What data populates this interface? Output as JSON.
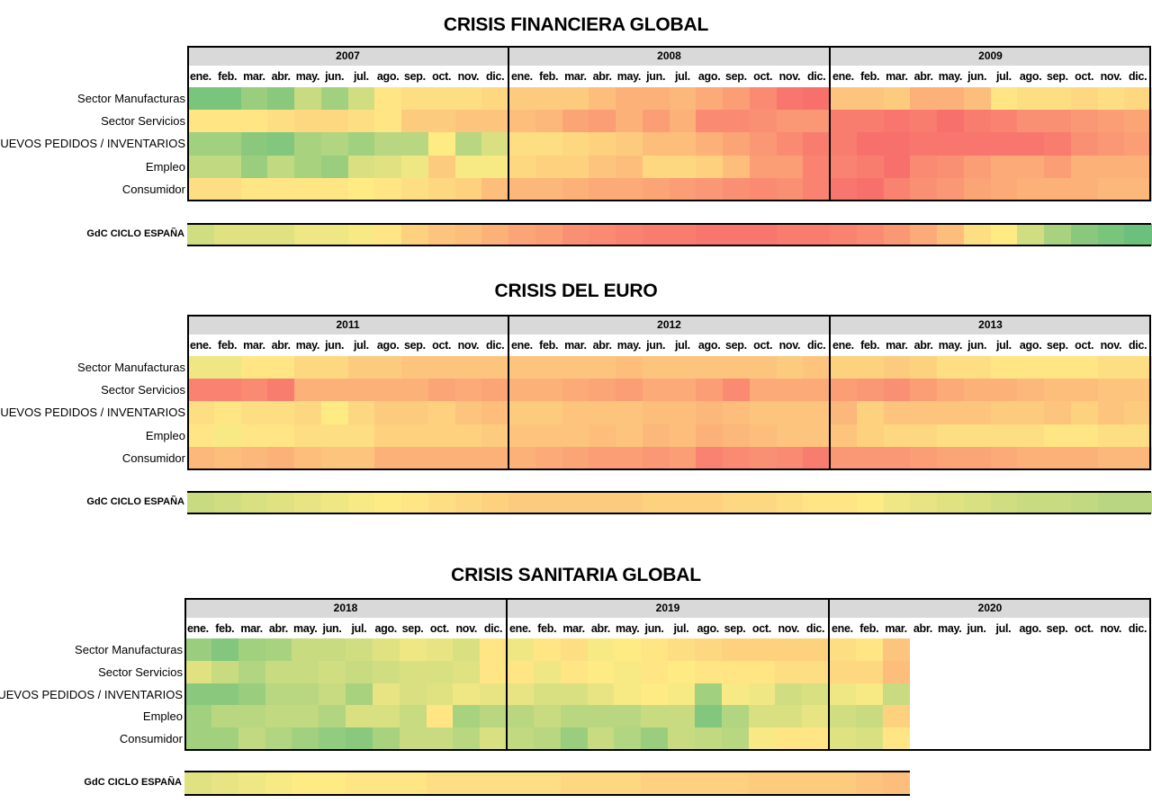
{
  "months": [
    "ene.",
    "feb.",
    "mar.",
    "abr.",
    "may.",
    "jun.",
    "jul.",
    "ago.",
    "sep.",
    "oct.",
    "nov.",
    "dic."
  ],
  "row_labels": [
    "Sector Manufacturas",
    "Sector Servicios",
    "NUEVOS PEDIDOS / INVENTARIOS",
    "Empleo",
    "Consumidor"
  ],
  "cycle_label": "GdC CICLO ESPAÑA",
  "palette": {
    "green": "#63be7b",
    "yellow": "#ffeb84",
    "red": "#f8696b"
  },
  "chart_data": [
    {
      "type": "heatmap",
      "title": "CRISIS FINANCIERA GLOBAL",
      "years": [
        "2007",
        "2008",
        "2009"
      ],
      "scale": "-1 = green (best), 0 = yellow, 1 = red (worst)",
      "rows": [
        [
          -0.85,
          -0.85,
          -0.65,
          -0.75,
          -0.35,
          -0.6,
          -0.3,
          0.05,
          0.1,
          0.1,
          0.1,
          0.15,
          0.25,
          0.25,
          0.25,
          0.35,
          0.45,
          0.45,
          0.4,
          0.5,
          0.6,
          0.75,
          0.9,
          0.95,
          0.3,
          0.3,
          0.25,
          0.45,
          0.45,
          0.35,
          0.05,
          0.1,
          0.1,
          0.15,
          0.1,
          0.15
        ],
        [
          0.05,
          0.05,
          0.05,
          0.1,
          0.15,
          0.15,
          0.1,
          0.05,
          0.25,
          0.25,
          0.3,
          0.3,
          0.35,
          0.4,
          0.55,
          0.6,
          0.45,
          0.6,
          0.45,
          0.75,
          0.75,
          0.7,
          0.65,
          0.65,
          0.85,
          0.85,
          0.9,
          0.85,
          0.95,
          0.85,
          0.8,
          0.7,
          0.7,
          0.65,
          0.6,
          0.55
        ],
        [
          -0.6,
          -0.6,
          -0.75,
          -0.8,
          -0.55,
          -0.5,
          -0.6,
          -0.45,
          -0.45,
          0.0,
          -0.45,
          -0.25,
          0.1,
          0.1,
          0.15,
          0.2,
          0.25,
          0.35,
          0.35,
          0.45,
          0.55,
          0.65,
          0.75,
          0.85,
          0.85,
          0.95,
          0.95,
          0.9,
          0.9,
          0.9,
          0.9,
          0.9,
          0.85,
          0.7,
          0.65,
          0.6
        ],
        [
          -0.4,
          -0.4,
          -0.65,
          -0.4,
          -0.55,
          -0.65,
          -0.25,
          -0.2,
          -0.1,
          0.25,
          -0.05,
          -0.05,
          0.15,
          0.2,
          0.2,
          0.3,
          0.35,
          0.15,
          0.15,
          0.2,
          0.35,
          0.6,
          0.6,
          0.8,
          0.8,
          0.85,
          0.95,
          0.75,
          0.7,
          0.6,
          0.5,
          0.5,
          0.6,
          0.45,
          0.45,
          0.45
        ],
        [
          0.1,
          0.1,
          0.05,
          0.05,
          0.05,
          0.05,
          0.0,
          0.05,
          0.1,
          0.15,
          0.2,
          0.35,
          0.4,
          0.4,
          0.45,
          0.5,
          0.5,
          0.55,
          0.6,
          0.65,
          0.7,
          0.75,
          0.7,
          0.8,
          0.9,
          0.95,
          0.8,
          0.7,
          0.65,
          0.55,
          0.5,
          0.45,
          0.45,
          0.45,
          0.4,
          0.4
        ]
      ],
      "cycle": [
        -0.3,
        -0.2,
        -0.2,
        -0.2,
        -0.1,
        -0.1,
        -0.05,
        0.05,
        0.2,
        0.3,
        0.35,
        0.45,
        0.55,
        0.6,
        0.7,
        0.75,
        0.8,
        0.85,
        0.85,
        0.9,
        0.9,
        0.9,
        0.85,
        0.85,
        0.8,
        0.75,
        0.65,
        0.5,
        0.35,
        0.1,
        0.0,
        -0.3,
        -0.55,
        -0.75,
        -0.85,
        -0.95
      ]
    },
    {
      "type": "heatmap",
      "title": "CRISIS DEL EURO",
      "years": [
        "2011",
        "2012",
        "2013"
      ],
      "scale": "-1 = green (best), 0 = yellow, 1 = red (worst)",
      "rows": [
        [
          -0.1,
          -0.1,
          0.05,
          0.05,
          0.15,
          0.15,
          0.25,
          0.25,
          0.3,
          0.3,
          0.3,
          0.3,
          0.3,
          0.3,
          0.3,
          0.3,
          0.35,
          0.3,
          0.3,
          0.3,
          0.3,
          0.3,
          0.25,
          0.3,
          0.2,
          0.2,
          0.25,
          0.2,
          0.1,
          0.1,
          0.05,
          0.05,
          0.05,
          0.05,
          0.1,
          0.1
        ],
        [
          0.8,
          0.8,
          0.75,
          0.85,
          0.45,
          0.45,
          0.45,
          0.45,
          0.45,
          0.55,
          0.5,
          0.55,
          0.45,
          0.45,
          0.5,
          0.55,
          0.6,
          0.5,
          0.5,
          0.6,
          0.75,
          0.5,
          0.5,
          0.5,
          0.6,
          0.65,
          0.7,
          0.6,
          0.5,
          0.45,
          0.45,
          0.4,
          0.35,
          0.35,
          0.3,
          0.3
        ],
        [
          0.1,
          0.05,
          0.1,
          0.1,
          0.15,
          0.0,
          0.15,
          0.25,
          0.25,
          0.2,
          0.3,
          0.35,
          0.25,
          0.25,
          0.3,
          0.3,
          0.3,
          0.35,
          0.35,
          0.4,
          0.35,
          0.3,
          0.3,
          0.3,
          0.4,
          0.2,
          0.3,
          0.3,
          0.3,
          0.3,
          0.25,
          0.25,
          0.3,
          0.2,
          0.3,
          0.25
        ],
        [
          0.05,
          -0.05,
          0.05,
          0.05,
          0.1,
          0.1,
          0.1,
          0.2,
          0.2,
          0.2,
          0.2,
          0.25,
          0.3,
          0.3,
          0.3,
          0.35,
          0.3,
          0.4,
          0.35,
          0.45,
          0.4,
          0.35,
          0.3,
          0.3,
          0.3,
          0.2,
          0.15,
          0.15,
          0.1,
          0.1,
          0.1,
          0.1,
          0.05,
          0.05,
          0.1,
          0.1
        ],
        [
          0.4,
          0.35,
          0.4,
          0.45,
          0.35,
          0.3,
          0.3,
          0.45,
          0.45,
          0.45,
          0.45,
          0.45,
          0.45,
          0.5,
          0.55,
          0.6,
          0.6,
          0.65,
          0.6,
          0.8,
          0.75,
          0.7,
          0.75,
          0.85,
          0.65,
          0.65,
          0.65,
          0.6,
          0.55,
          0.55,
          0.5,
          0.45,
          0.45,
          0.45,
          0.4,
          0.4
        ]
      ],
      "cycle": [
        -0.35,
        -0.3,
        -0.25,
        -0.2,
        -0.15,
        -0.1,
        -0.05,
        0.0,
        0.05,
        0.1,
        0.15,
        0.2,
        0.25,
        0.25,
        0.25,
        0.25,
        0.25,
        0.2,
        0.2,
        0.2,
        0.15,
        0.15,
        0.1,
        0.05,
        0.05,
        0.0,
        -0.1,
        -0.15,
        -0.2,
        -0.25,
        -0.3,
        -0.35,
        -0.35,
        -0.4,
        -0.45,
        -0.45
      ]
    },
    {
      "type": "heatmap",
      "title": "CRISIS SANITARIA GLOBAL",
      "years": [
        "2018",
        "2019",
        "2020"
      ],
      "scale": "-1 = green (best), 0 = yellow, 1 = red (worst); 2020 data only ene.-mar.",
      "rows": [
        [
          -0.65,
          -0.8,
          -0.6,
          -0.55,
          -0.35,
          -0.35,
          -0.3,
          -0.2,
          -0.1,
          -0.15,
          -0.25,
          0.05,
          -0.1,
          0.05,
          0.1,
          -0.05,
          0.0,
          0.05,
          0.1,
          0.15,
          0.2,
          0.2,
          0.2,
          0.2,
          0.1,
          0.05,
          0.3
        ],
        [
          -0.2,
          -0.35,
          -0.5,
          -0.35,
          -0.35,
          -0.3,
          -0.35,
          -0.3,
          -0.25,
          -0.25,
          -0.2,
          0.05,
          0.05,
          -0.1,
          0.05,
          0.0,
          -0.05,
          0.05,
          0.0,
          0.05,
          0.05,
          0.05,
          0.1,
          0.1,
          0.15,
          0.15,
          0.35
        ],
        [
          -0.75,
          -0.75,
          -0.65,
          -0.45,
          -0.45,
          -0.35,
          -0.55,
          -0.15,
          -0.25,
          -0.2,
          -0.1,
          -0.15,
          -0.15,
          -0.25,
          -0.25,
          -0.15,
          -0.05,
          0.0,
          -0.05,
          -0.6,
          -0.05,
          -0.1,
          -0.3,
          -0.25,
          -0.1,
          -0.05,
          -0.35
        ],
        [
          -0.6,
          -0.45,
          -0.45,
          -0.4,
          -0.4,
          -0.5,
          -0.25,
          -0.25,
          -0.35,
          0.05,
          -0.55,
          -0.45,
          -0.45,
          -0.35,
          -0.45,
          -0.45,
          -0.45,
          -0.35,
          -0.35,
          -0.8,
          -0.5,
          -0.25,
          -0.25,
          -0.15,
          -0.3,
          -0.35,
          0.2
        ],
        [
          -0.6,
          -0.6,
          -0.4,
          -0.5,
          -0.6,
          -0.7,
          -0.75,
          -0.55,
          -0.35,
          -0.35,
          -0.45,
          -0.25,
          -0.4,
          -0.45,
          -0.65,
          -0.35,
          -0.5,
          -0.65,
          -0.35,
          -0.4,
          -0.45,
          -0.05,
          0.05,
          0.05,
          -0.2,
          -0.25,
          0.05
        ]
      ],
      "cycle": [
        -0.2,
        -0.15,
        -0.1,
        -0.05,
        0.0,
        0.0,
        0.05,
        0.05,
        0.05,
        0.1,
        0.1,
        0.1,
        0.1,
        0.1,
        0.15,
        0.15,
        0.15,
        0.2,
        0.2,
        0.2,
        0.2,
        0.25,
        0.25,
        0.25,
        0.25,
        0.3,
        0.35
      ]
    }
  ]
}
